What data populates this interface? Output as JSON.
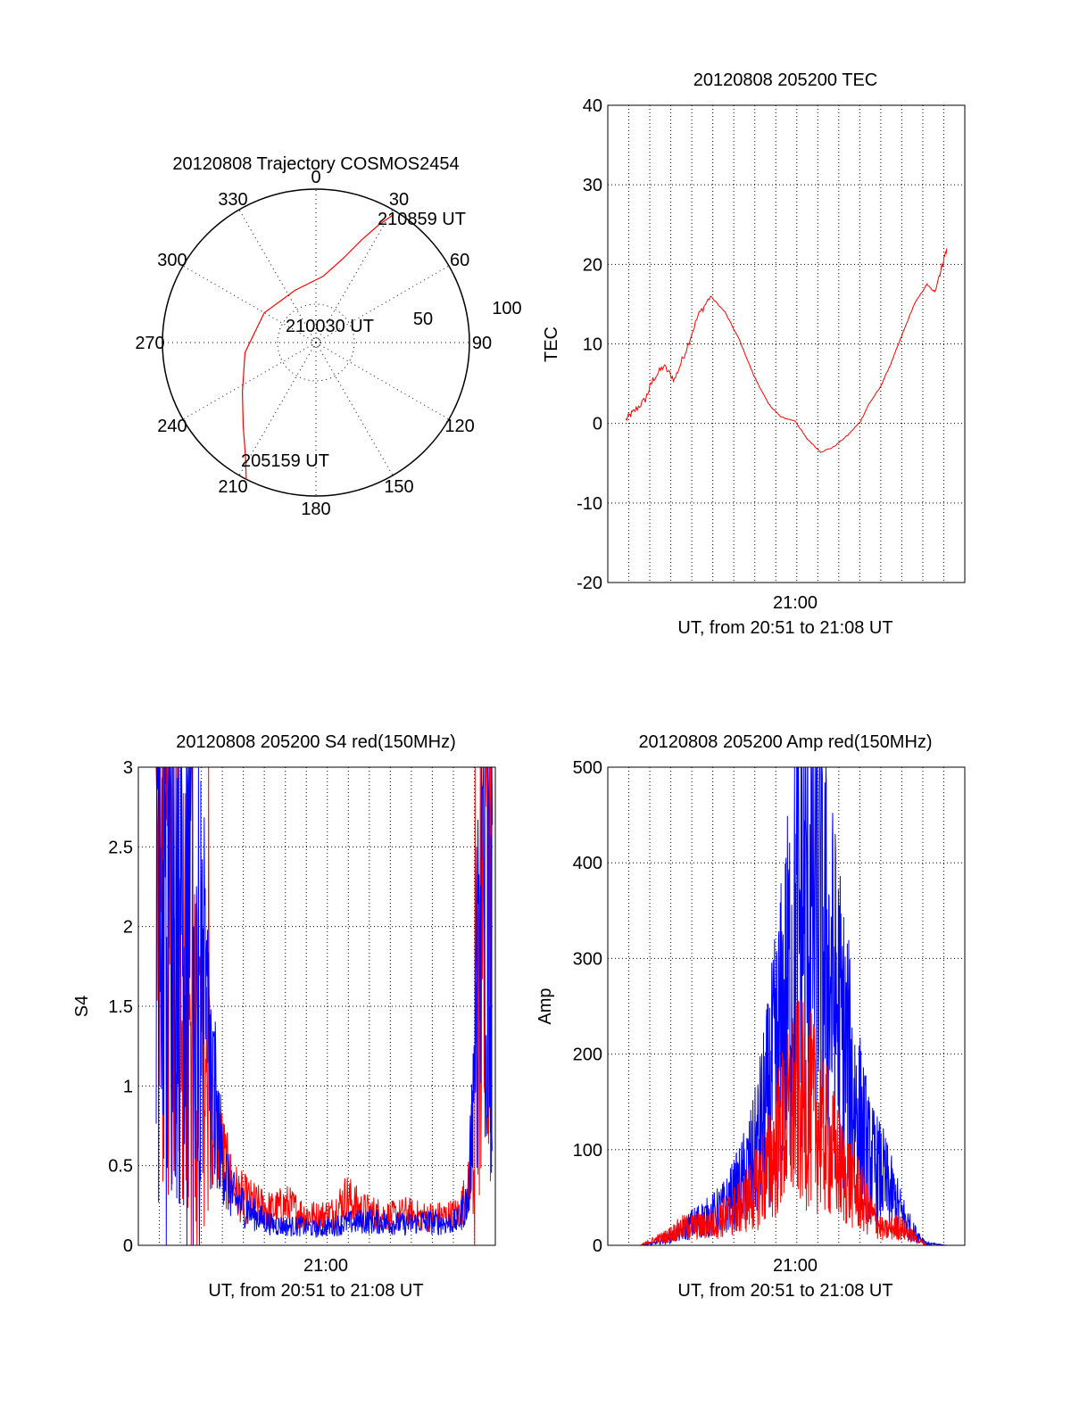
{
  "chart_data": [
    {
      "id": "trajectory",
      "type": "polar",
      "title": "20120808 Trajectory COSMOS2454",
      "azimuth_ticks": [
        0,
        30,
        60,
        90,
        120,
        150,
        180,
        210,
        240,
        270,
        300,
        330
      ],
      "radial_labels": [
        "50",
        "100"
      ],
      "radial_rings_deg": [
        50,
        100
      ],
      "trajectory": {
        "color": "#ff0000",
        "points": [
          {
            "az": 207,
            "el": 0
          },
          {
            "az": 212,
            "el": 12
          },
          {
            "az": 221,
            "el": 25
          },
          {
            "az": 236,
            "el": 38
          },
          {
            "az": 262,
            "el": 48
          },
          {
            "az": 300,
            "el": 55
          },
          {
            "az": 338,
            "el": 57
          },
          {
            "az": 6,
            "el": 51
          },
          {
            "az": 18,
            "el": 38
          },
          {
            "az": 24,
            "el": 24
          },
          {
            "az": 28,
            "el": 12
          },
          {
            "az": 31,
            "el": 3
          }
        ]
      },
      "annotations": [
        {
          "text": "210859 UT",
          "anchor": "end-point"
        },
        {
          "text": "210030 UT",
          "anchor": "center"
        },
        {
          "text": "205159 UT",
          "anchor": "start-point"
        }
      ]
    },
    {
      "id": "tec",
      "type": "line",
      "title": "20120808 205200 TEC",
      "xlabel": "UT, from 20:51 to 21:08 UT",
      "ylabel": "TEC",
      "x_tick_label": "21:00",
      "ylim": [
        -20,
        40
      ],
      "yticks": [
        -20,
        -10,
        0,
        10,
        20,
        30,
        40
      ],
      "xlim_minutes": [
        20.85,
        21.17
      ],
      "series": [
        {
          "color": "#ff0000",
          "x": [
            20.51,
            20.95,
            21.58,
            22.0,
            22.6,
            23.2,
            23.8,
            24.5,
            25.2,
            26.0,
            26.8,
            27.6,
            28.4,
            29.1,
            29.9,
            30.5,
            31.3,
            32.0,
            32.8,
            33.5,
            34.0,
            34.6,
            35.2,
            35.8,
            36.5,
            37.2,
            37.6,
            38.0,
            38.3
          ],
          "y": [
            0.5,
            1.5,
            3,
            5.5,
            7.2,
            5.5,
            9,
            13.5,
            16,
            14,
            10.5,
            6,
            2.5,
            0.8,
            0.3,
            -1.8,
            -3.6,
            -3.0,
            -1.5,
            0.2,
            2.5,
            4.5,
            7.5,
            11,
            15,
            17.5,
            16.5,
            19.5,
            22
          ]
        }
      ]
    },
    {
      "id": "s4",
      "type": "line",
      "title": "20120808 205200 S4 red(150MHz)",
      "xlabel": "UT, from 20:51 to 21:08 UT",
      "ylabel": "S4",
      "x_tick_label": "21:00",
      "ylim": [
        0,
        3
      ],
      "yticks": [
        "0",
        "0.5",
        "1",
        "1.5",
        "2",
        "2.5",
        "3"
      ],
      "series": [
        {
          "color": "#ff0000",
          "x": [
            20.52,
            20.6,
            20.7,
            20.8,
            20.9,
            21.0,
            21.04,
            21.1,
            21.2,
            21.3,
            21.4,
            21.5,
            21.6,
            21.7,
            21.8,
            21.9,
            22.0,
            22.1,
            22.2,
            22.3,
            22.45,
            22.55,
            22.62,
            22.68,
            22.72,
            22.78
          ],
          "y": [
            2.3,
            2.0,
            1.6,
            1.3,
            0.8,
            0.45,
            0.35,
            0.3,
            0.25,
            0.22,
            0.25,
            0.2,
            0.18,
            0.2,
            0.3,
            0.22,
            0.2,
            0.18,
            0.2,
            0.18,
            0.18,
            0.2,
            0.35,
            1.3,
            2.4,
            2.7
          ]
        },
        {
          "color": "#0000ff",
          "x": [
            20.52,
            20.6,
            20.7,
            20.8,
            20.9,
            21.0,
            21.04,
            21.1,
            21.2,
            21.3,
            21.4,
            21.5,
            21.6,
            21.7,
            21.8,
            21.9,
            22.0,
            22.1,
            22.2,
            22.3,
            22.45,
            22.55,
            22.62,
            22.68,
            22.72,
            22.78
          ],
          "y": [
            2.4,
            2.2,
            2.0,
            1.8,
            0.9,
            0.4,
            0.3,
            0.25,
            0.18,
            0.13,
            0.12,
            0.12,
            0.1,
            0.12,
            0.14,
            0.15,
            0.15,
            0.14,
            0.13,
            0.15,
            0.14,
            0.15,
            0.3,
            1.5,
            2.5,
            2.8
          ]
        }
      ]
    },
    {
      "id": "amp",
      "type": "line",
      "title": "20120808 205200 Amp red(150MHz)",
      "xlabel": "UT, from 20:51 to 21:08 UT",
      "ylabel": "Amp",
      "x_tick_label": "21:00",
      "ylim": [
        0,
        500
      ],
      "yticks": [
        0,
        100,
        200,
        300,
        400,
        500
      ],
      "series": [
        {
          "color": "#0000ff",
          "x": [
            20.51,
            21.3,
            22.0,
            22.8,
            23.6,
            24.4,
            25.2,
            26.0,
            26.8,
            27.6,
            28.4,
            29.2,
            30.0,
            30.8,
            31.6,
            32.4,
            33.2,
            34.0,
            34.8,
            35.6,
            36.4,
            37.2,
            38.3
          ],
          "y": [
            0,
            0,
            2,
            6,
            15,
            25,
            30,
            40,
            60,
            90,
            150,
            230,
            330,
            380,
            300,
            230,
            150,
            90,
            70,
            40,
            15,
            2,
            0
          ]
        },
        {
          "color": "#ff0000",
          "x": [
            20.51,
            21.3,
            22.0,
            22.8,
            23.6,
            24.4,
            25.2,
            26.0,
            26.8,
            27.6,
            28.4,
            29.2,
            30.0,
            30.8,
            31.6,
            32.4,
            33.2,
            34.0,
            34.8,
            35.6,
            36.4,
            37.2,
            38.3
          ],
          "y": [
            0,
            0,
            5,
            10,
            18,
            20,
            22,
            30,
            40,
            55,
            80,
            120,
            150,
            140,
            110,
            80,
            60,
            35,
            15,
            20,
            10,
            0,
            0
          ]
        }
      ]
    }
  ]
}
